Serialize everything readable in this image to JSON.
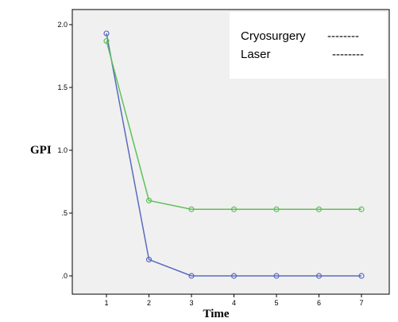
{
  "chart_data": {
    "type": "line",
    "title": "",
    "xlabel": "Time",
    "ylabel": "GPI",
    "x": [
      1,
      2,
      3,
      4,
      5,
      6,
      7
    ],
    "xlim": [
      0,
      8
    ],
    "ylim": [
      -0.2,
      2.1
    ],
    "yticks": [
      {
        "value": 0.0,
        "label": ".0"
      },
      {
        "value": 0.5,
        "label": ".5"
      },
      {
        "value": 1.0,
        "label": "1.0"
      },
      {
        "value": 1.5,
        "label": "1.5"
      },
      {
        "value": 2.0,
        "label": "2.0"
      }
    ],
    "xticks": [
      {
        "value": 1,
        "label": "1"
      },
      {
        "value": 2,
        "label": "2"
      },
      {
        "value": 3,
        "label": "3"
      },
      {
        "value": 4,
        "label": "4"
      },
      {
        "value": 5,
        "label": "5"
      },
      {
        "value": 6,
        "label": "6"
      },
      {
        "value": 7,
        "label": "7"
      }
    ],
    "series": [
      {
        "key": "blue",
        "values": [
          1.93,
          0.13,
          0.0,
          0.0,
          0.0,
          0.0,
          0.0
        ],
        "color": "#5b6abf"
      },
      {
        "key": "green",
        "values": [
          1.87,
          0.6,
          0.53,
          0.53,
          0.53,
          0.53,
          0.53
        ],
        "color": "#5fc15a"
      }
    ],
    "legend": {
      "placement": "top-right",
      "entries": [
        {
          "label": "Cryosurgery",
          "swatch": "--------",
          "swatch_color": "#000000"
        },
        {
          "label": "Laser",
          "swatch": "--------",
          "swatch_color": "#2ab0e8"
        }
      ]
    },
    "grid": false,
    "plot_background": "#f0f0f0"
  }
}
